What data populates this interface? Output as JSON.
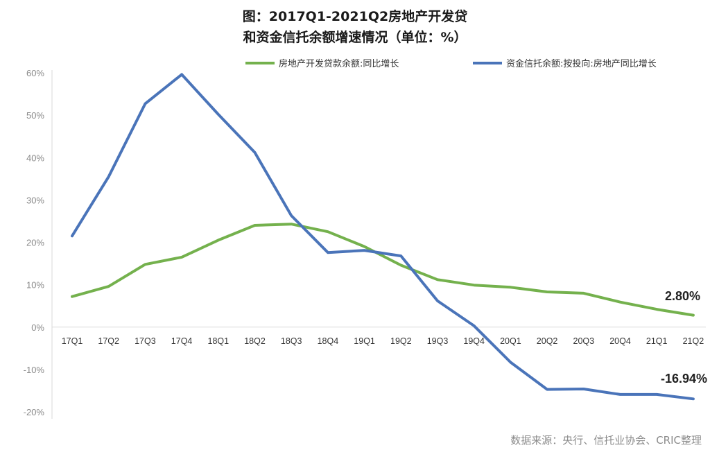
{
  "chart_data": {
    "type": "line",
    "title": [
      "图：2017Q1-2021Q2房地产开发贷",
      "和资金信托余额增速情况（单位：%）"
    ],
    "categories": [
      "17Q1",
      "17Q2",
      "17Q3",
      "17Q4",
      "18Q1",
      "18Q2",
      "18Q3",
      "18Q4",
      "19Q1",
      "19Q2",
      "19Q3",
      "19Q4",
      "20Q1",
      "20Q2",
      "20Q3",
      "20Q4",
      "21Q1",
      "21Q2"
    ],
    "ylim": [
      -20,
      60
    ],
    "yticks": [
      -20,
      -10,
      0,
      10,
      20,
      30,
      40,
      50,
      60
    ],
    "ytick_labels": [
      "-20%",
      "-10%",
      "0%",
      "10%",
      "20%",
      "30%",
      "40%",
      "50%",
      "60%"
    ],
    "grid": false,
    "legend_position": "top-right",
    "series": [
      {
        "name": "房地产开发贷款余额:同比增长",
        "color": "#74b14d",
        "values": [
          7.2,
          9.6,
          14.8,
          16.5,
          20.5,
          24.0,
          24.3,
          22.5,
          19.0,
          14.6,
          11.2,
          9.9,
          9.4,
          8.3,
          8.0,
          5.9,
          4.2,
          2.8
        ],
        "end_label": "2.80%"
      },
      {
        "name": "资金信托余额:按投向:房地产同比增长",
        "color": "#4a74b9",
        "values": [
          21.5,
          35.5,
          52.7,
          59.6,
          50.2,
          41.2,
          26.3,
          17.6,
          18.1,
          16.8,
          6.2,
          0.3,
          -8.3,
          -14.7,
          -14.6,
          -15.9,
          -15.9,
          -16.94
        ],
        "end_label": "-16.94%"
      }
    ],
    "source": "数据来源：央行、信托业协会、CRIC整理"
  }
}
